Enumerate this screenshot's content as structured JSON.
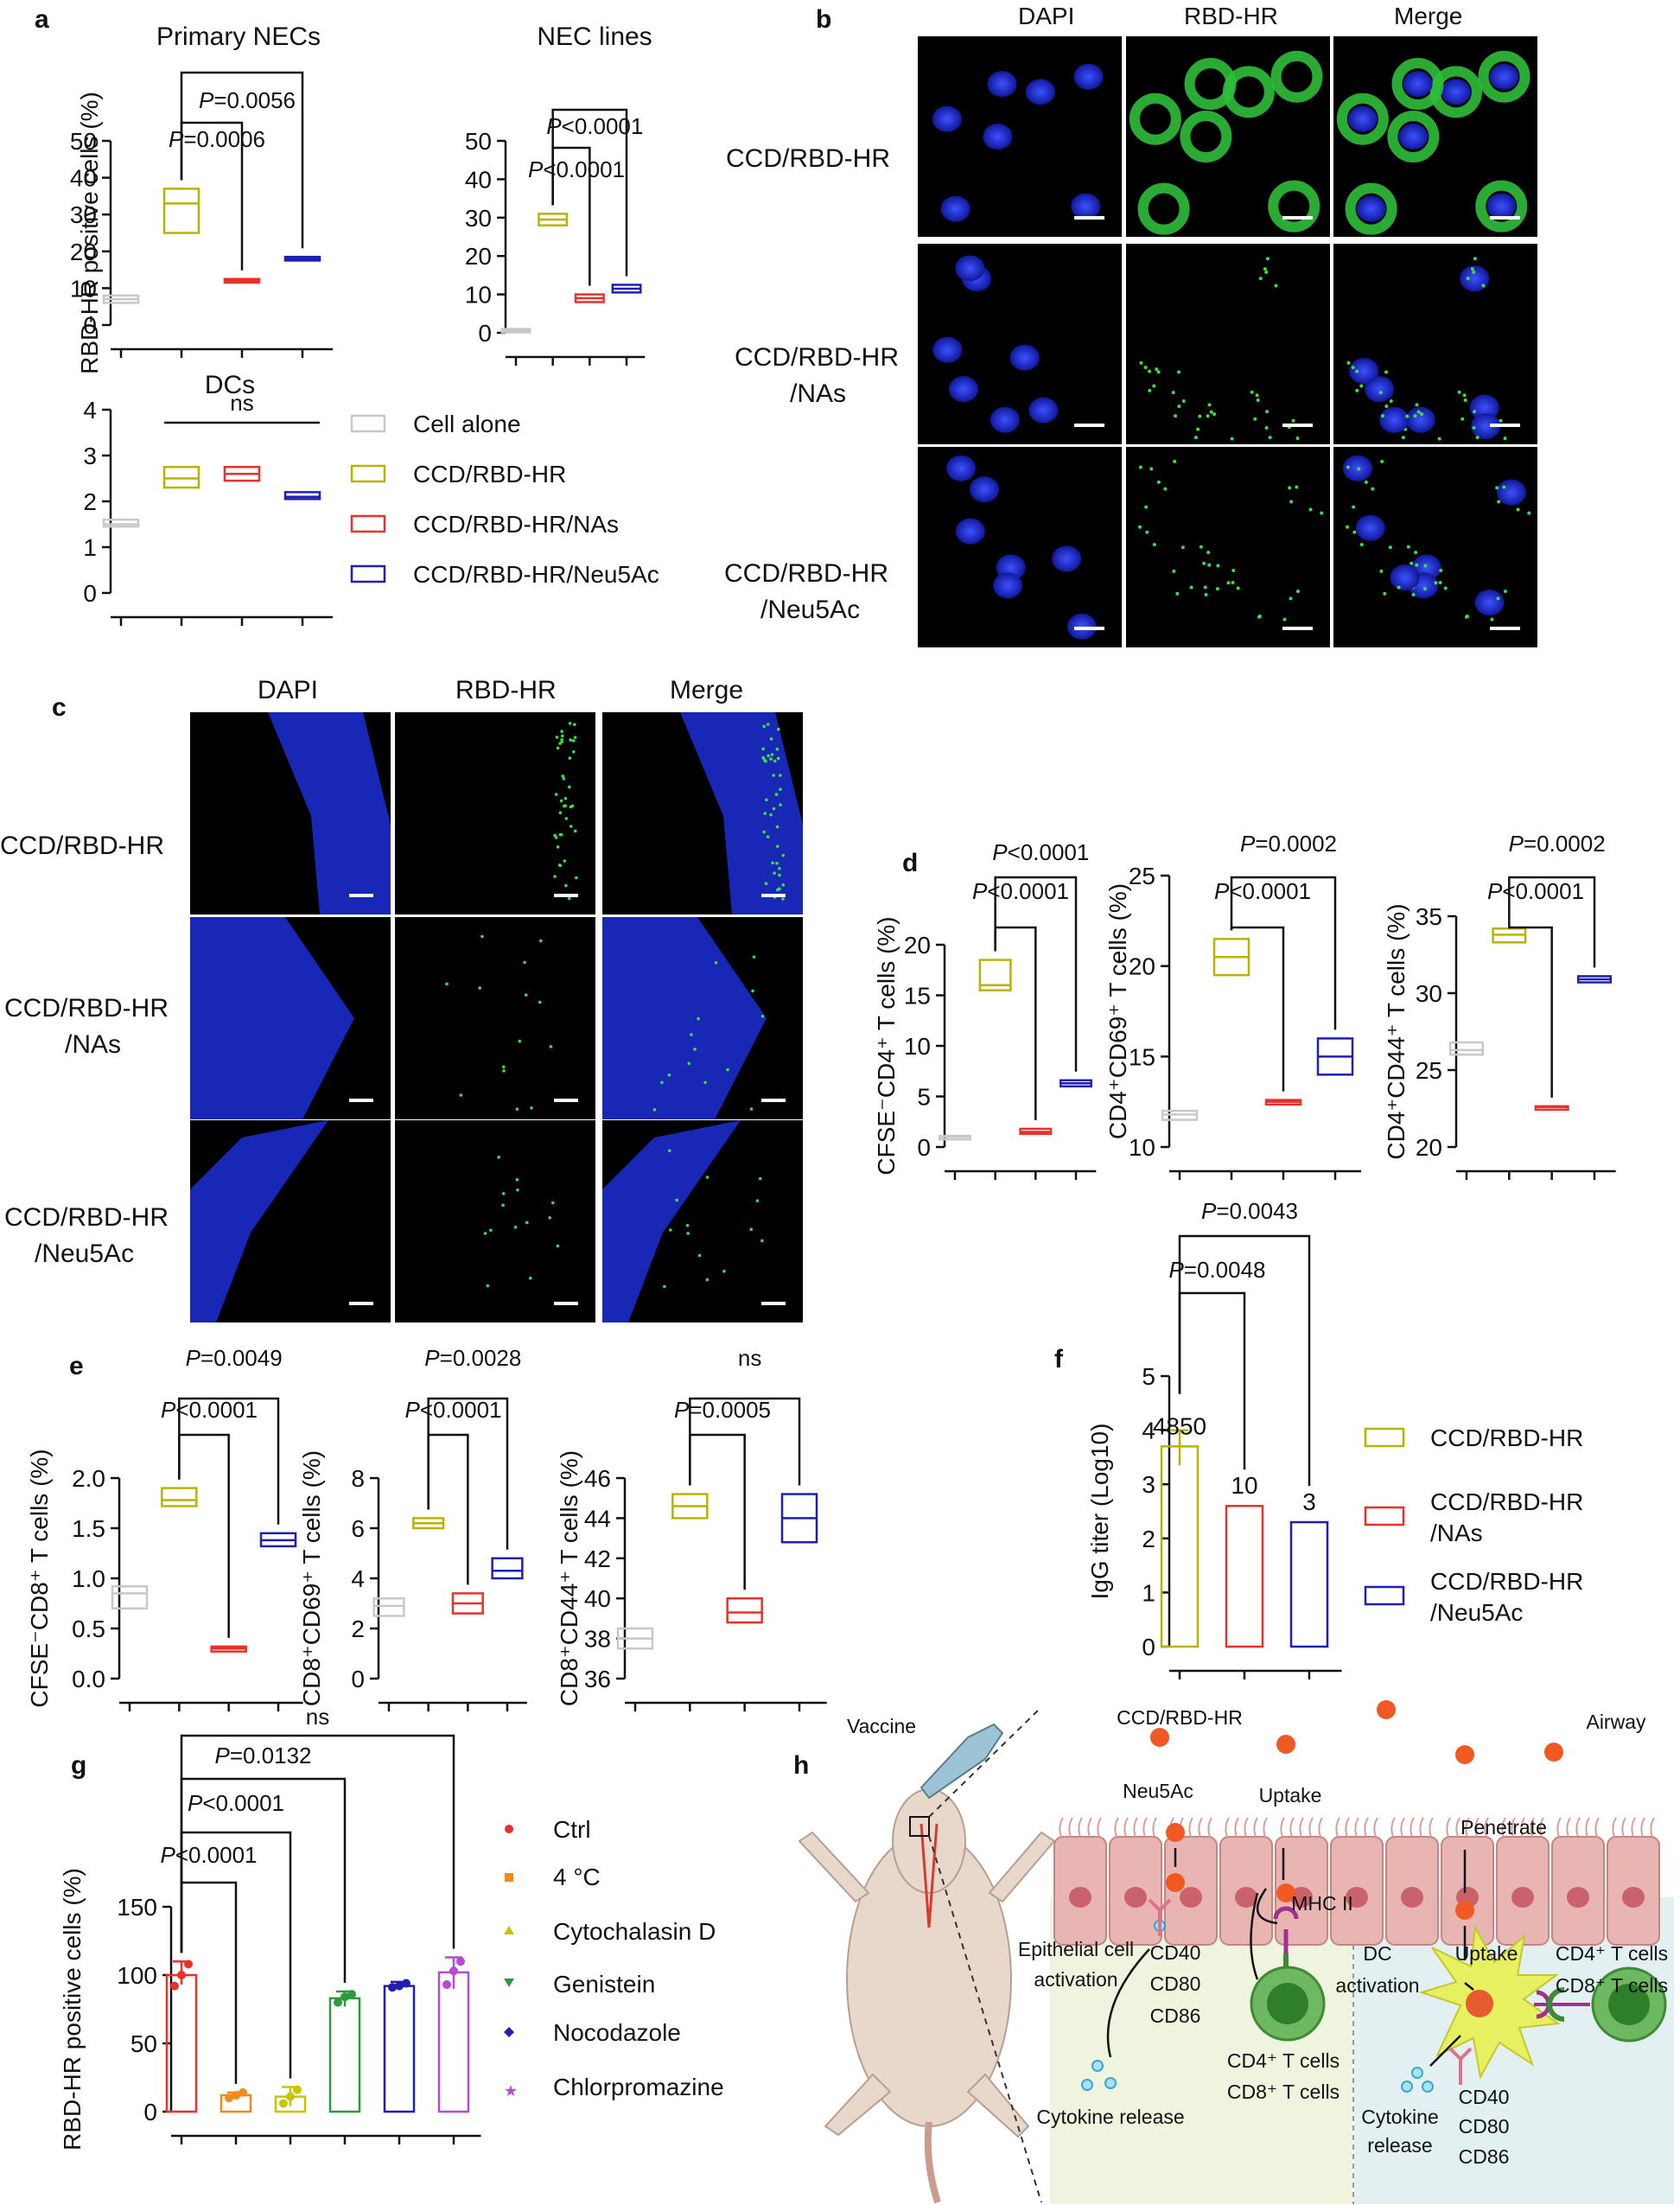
{
  "panel_labels": {
    "a": "a",
    "b": "b",
    "c": "c",
    "d": "d",
    "e": "e",
    "f": "f",
    "g": "g",
    "h": "h"
  },
  "colors": {
    "cell_alone": "#c8c8c8",
    "ccd_rbd_hr": "#b9b300",
    "nas": "#e8312a",
    "neu5ac": "#1f1fb4",
    "ctrl": "#e8312a",
    "c4": "#f08a1c",
    "cytoD": "#c9c400",
    "genistein": "#2e9a3b",
    "nocodazole": "#1f1fb4",
    "chlorpromazine": "#b44ad8"
  },
  "legend_a": [
    "Cell alone",
    "CCD/RBD-HR",
    "CCD/RBD-HR/NAs",
    "CCD/RBD-HR/Neu5Ac"
  ],
  "legend_f": [
    "CCD/RBD-HR",
    "CCD/RBD-HR",
    "/NAs",
    "CCD/RBD-HR",
    "/Neu5Ac"
  ],
  "legend_g": [
    "Ctrl",
    "4 °C",
    "Cytochalasin D",
    "Genistein",
    "Nocodazole",
    "Chlorpromazine"
  ],
  "panel_b": {
    "cols": [
      "DAPI",
      "RBD-HR",
      "Merge"
    ],
    "rows": [
      [
        "CCD/RBD-HR"
      ],
      [
        "CCD/RBD-HR",
        "/NAs"
      ],
      [
        "CCD/RBD-HR",
        "/Neu5Ac"
      ]
    ]
  },
  "panel_c": {
    "cols": [
      "DAPI",
      "RBD-HR",
      "Merge"
    ],
    "rows": [
      [
        "CCD/RBD-HR"
      ],
      [
        "CCD/RBD-HR",
        "/NAs"
      ],
      [
        "CCD/RBD-HR",
        "/Neu5Ac"
      ]
    ]
  },
  "panel_h": {
    "labels": [
      "Vaccine",
      "CCD/RBD-HR",
      "Airway",
      "Neu5Ac",
      "Uptake",
      "Penetrate",
      "Epithelial cell",
      "activation",
      "CD40",
      "CD80",
      "CD86",
      "MHC II",
      "Uptake",
      "DC",
      "activation",
      "CD4⁺ T cells",
      "CD8⁺ T cells",
      "Cytokine release",
      "CD4⁺ T cells",
      "CD8⁺ T cells",
      "Cytokine",
      "release",
      "CD40",
      "CD80",
      "CD86"
    ]
  },
  "chart_data": [
    {
      "id": "a1",
      "type": "box",
      "title": "Primary NECs",
      "ylabel": "RBD-HR positive cells (%)",
      "ylim": [
        0,
        50
      ],
      "yticks": [
        0,
        10,
        20,
        30,
        40,
        50
      ],
      "boxes": [
        {
          "series": "Cell alone",
          "min": 6,
          "med": 7,
          "max": 8
        },
        {
          "series": "CCD/RBD-HR",
          "min": 25,
          "med": 33,
          "max": 37
        },
        {
          "series": "CCD/RBD-HR/NAs",
          "min": 11.5,
          "med": 12,
          "max": 12.5
        },
        {
          "series": "CCD/RBD-HR/Neu5Ac",
          "min": 17.5,
          "med": 18,
          "max": 18.5
        }
      ],
      "annotations": [
        {
          "from": 1,
          "to": 2,
          "text": "P=0.0006"
        },
        {
          "from": 1,
          "to": 3,
          "text": "P=0.0056"
        }
      ]
    },
    {
      "id": "a2",
      "type": "box",
      "title": "NEC lines",
      "ylim": [
        0,
        50
      ],
      "yticks": [
        0,
        10,
        20,
        30,
        40,
        50
      ],
      "boxes": [
        {
          "series": "Cell alone",
          "min": 0.3,
          "med": 0.6,
          "max": 1
        },
        {
          "series": "CCD/RBD-HR",
          "min": 28,
          "med": 29.5,
          "max": 31
        },
        {
          "series": "CCD/RBD-HR/NAs",
          "min": 8,
          "med": 9,
          "max": 10
        },
        {
          "series": "CCD/RBD-HR/Neu5Ac",
          "min": 10.5,
          "med": 11.5,
          "max": 12.5
        }
      ],
      "annotations": [
        {
          "from": 1,
          "to": 2,
          "text": "P<0.0001"
        },
        {
          "from": 1,
          "to": 3,
          "text": "P<0.0001"
        }
      ]
    },
    {
      "id": "a3",
      "type": "box",
      "title": "DCs",
      "ylim": [
        0,
        4
      ],
      "yticks": [
        0,
        1,
        2,
        3,
        4
      ],
      "boxes": [
        {
          "series": "Cell alone",
          "min": 1.45,
          "med": 1.5,
          "max": 1.6
        },
        {
          "series": "CCD/RBD-HR",
          "min": 2.3,
          "med": 2.5,
          "max": 2.75
        },
        {
          "series": "CCD/RBD-HR/NAs",
          "min": 2.45,
          "med": 2.6,
          "max": 2.75
        },
        {
          "series": "CCD/RBD-HR/Neu5Ac",
          "min": 2.05,
          "med": 2.1,
          "max": 2.2
        }
      ],
      "annotations": [
        {
          "line": [
            1,
            3
          ],
          "text": "ns"
        }
      ]
    },
    {
      "id": "d1",
      "type": "box",
      "ylabel": "CFSE⁻CD4⁺ T cells (%)",
      "ylim": [
        0,
        20
      ],
      "yticks": [
        0,
        5,
        10,
        15,
        20
      ],
      "boxes": [
        {
          "series": "Cell alone",
          "min": 0.9,
          "med": 1,
          "max": 1.1
        },
        {
          "series": "CCD/RBD-HR",
          "min": 15.5,
          "med": 16,
          "max": 18.5
        },
        {
          "series": "CCD/RBD-HR/NAs",
          "min": 1.3,
          "med": 1.5,
          "max": 1.8
        },
        {
          "series": "CCD/RBD-HR/Neu5Ac",
          "min": 6,
          "med": 6.3,
          "max": 6.6
        }
      ],
      "annotations": [
        {
          "from": 1,
          "to": 2,
          "text": "P<0.0001"
        },
        {
          "from": 1,
          "to": 3,
          "text": "P<0.0001"
        }
      ]
    },
    {
      "id": "d2",
      "type": "box",
      "ylabel": "CD4⁺CD69⁺ T cells (%)",
      "ylim": [
        10,
        25
      ],
      "yticks": [
        10,
        15,
        20,
        25
      ],
      "boxes": [
        {
          "series": "Cell alone",
          "min": 11.5,
          "med": 11.8,
          "max": 12
        },
        {
          "series": "CCD/RBD-HR",
          "min": 19.5,
          "med": 20.5,
          "max": 21.5
        },
        {
          "series": "CCD/RBD-HR/NAs",
          "min": 12.35,
          "med": 12.5,
          "max": 12.6
        },
        {
          "series": "CCD/RBD-HR/Neu5Ac",
          "min": 14,
          "med": 15,
          "max": 16
        }
      ],
      "annotations": [
        {
          "from": 1,
          "to": 2,
          "text": "P<0.0001"
        },
        {
          "from": 1,
          "to": 3,
          "text": "P=0.0002"
        }
      ]
    },
    {
      "id": "d3",
      "type": "box",
      "ylabel": "CD4⁺CD44⁺ T cells (%)",
      "ylim": [
        20,
        35
      ],
      "yticks": [
        20,
        25,
        30,
        35
      ],
      "boxes": [
        {
          "series": "Cell alone",
          "min": 26,
          "med": 26.3,
          "max": 26.8
        },
        {
          "series": "CCD/RBD-HR",
          "min": 33.3,
          "med": 33.8,
          "max": 34.2
        },
        {
          "series": "CCD/RBD-HR/NAs",
          "min": 22.55,
          "med": 22.6,
          "max": 22.65
        },
        {
          "series": "CCD/RBD-HR/Neu5Ac",
          "min": 30.7,
          "med": 30.9,
          "max": 31.1
        }
      ],
      "annotations": [
        {
          "from": 1,
          "to": 2,
          "text": "P<0.0001"
        },
        {
          "from": 1,
          "to": 3,
          "text": "P=0.0002"
        }
      ]
    },
    {
      "id": "e1",
      "type": "box",
      "ylabel": "CFSE⁻CD8⁺ T cells (%)",
      "ylim": [
        0,
        2
      ],
      "yticks": [
        "0.0",
        "0.5",
        "1.0",
        "1.5",
        "2.0"
      ],
      "boxes": [
        {
          "series": "Cell alone",
          "min": 0.7,
          "med": 0.85,
          "max": 0.92
        },
        {
          "series": "CCD/RBD-HR",
          "min": 1.72,
          "med": 1.78,
          "max": 1.9
        },
        {
          "series": "CCD/RBD-HR/NAs",
          "min": 0.27,
          "med": 0.3,
          "max": 0.32
        },
        {
          "series": "CCD/RBD-HR/Neu5Ac",
          "min": 1.32,
          "med": 1.38,
          "max": 1.45
        }
      ],
      "annotations": [
        {
          "from": 1,
          "to": 2,
          "text": "P<0.0001"
        },
        {
          "from": 1,
          "to": 3,
          "text": "P=0.0049"
        }
      ]
    },
    {
      "id": "e2",
      "type": "box",
      "ylabel": "CD8⁺CD69⁺ T cells (%)",
      "ylim": [
        0,
        8
      ],
      "yticks": [
        0,
        2,
        4,
        6,
        8
      ],
      "boxes": [
        {
          "series": "Cell alone",
          "min": 2.5,
          "med": 2.9,
          "max": 3.2
        },
        {
          "series": "CCD/RBD-HR",
          "min": 6,
          "med": 6.2,
          "max": 6.4
        },
        {
          "series": "CCD/RBD-HR/NAs",
          "min": 2.6,
          "med": 3,
          "max": 3.4
        },
        {
          "series": "CCD/RBD-HR/Neu5Ac",
          "min": 4,
          "med": 4.3,
          "max": 4.8
        }
      ],
      "annotations": [
        {
          "from": 1,
          "to": 2,
          "text": "P<0.0001"
        },
        {
          "from": 1,
          "to": 3,
          "text": "P=0.0028"
        }
      ]
    },
    {
      "id": "e3",
      "type": "box",
      "ylabel": "CD8⁺CD44⁺ T cells (%)",
      "ylim": [
        36,
        46
      ],
      "yticks": [
        36,
        38,
        40,
        42,
        44,
        46
      ],
      "boxes": [
        {
          "series": "Cell alone",
          "min": 37.5,
          "med": 38,
          "max": 38.5
        },
        {
          "series": "CCD/RBD-HR",
          "min": 44,
          "med": 44.6,
          "max": 45.2
        },
        {
          "series": "CCD/RBD-HR/NAs",
          "min": 38.8,
          "med": 39.3,
          "max": 40
        },
        {
          "series": "CCD/RBD-HR/Neu5Ac",
          "min": 42.8,
          "med": 44,
          "max": 45.2
        }
      ],
      "annotations": [
        {
          "from": 1,
          "to": 2,
          "text": "P=0.0005"
        },
        {
          "from": 1,
          "to": 3,
          "text": "ns"
        }
      ]
    },
    {
      "id": "f",
      "type": "bar",
      "ylabel": "IgG titer (Log10)",
      "ylim": [
        0,
        5
      ],
      "yticks": [
        0,
        1,
        2,
        3,
        4,
        5
      ],
      "bars": [
        {
          "series": "CCD/RBD-HR",
          "value": 3.7,
          "label": "4850",
          "err": [
            3.35,
            4.0
          ]
        },
        {
          "series": "CCD/RBD-HR/NAs",
          "value": 2.6,
          "label": "10"
        },
        {
          "series": "CCD/RBD-HR/Neu5Ac",
          "value": 2.3,
          "label": "3"
        }
      ],
      "annotations": [
        {
          "from": 0,
          "to": 1,
          "text": "P=0.0048"
        },
        {
          "from": 0,
          "to": 2,
          "text": "P=0.0043"
        }
      ]
    },
    {
      "id": "g",
      "type": "bar",
      "ylabel": "RBD-HR positive cells (%)",
      "ylim": [
        0,
        150
      ],
      "yticks": [
        0,
        50,
        100,
        150
      ],
      "bars": [
        {
          "series": "Ctrl",
          "value": 100,
          "err": [
            93,
            110
          ],
          "points": [
            92,
            100,
            108
          ]
        },
        {
          "series": "4 °C",
          "value": 12,
          "err": [
            10,
            14
          ],
          "points": [
            10,
            12,
            14
          ]
        },
        {
          "series": "Cytochalasin D",
          "value": 11,
          "err": [
            4,
            18
          ],
          "points": [
            6,
            11,
            16
          ]
        },
        {
          "series": "Genistein",
          "value": 83,
          "err": [
            77,
            88
          ],
          "points": [
            80,
            84,
            86
          ]
        },
        {
          "series": "Nocodazole",
          "value": 92,
          "err": [
            90,
            95
          ],
          "points": [
            91,
            92,
            94
          ]
        },
        {
          "series": "Chlorpromazine",
          "value": 102,
          "err": [
            90,
            113
          ],
          "points": [
            93,
            103,
            110
          ]
        }
      ],
      "annotations": [
        {
          "from": 0,
          "to": 1,
          "text": "P<0.0001"
        },
        {
          "from": 0,
          "to": 2,
          "text": "P<0.0001"
        },
        {
          "from": 0,
          "to": 3,
          "text": "P=0.0132"
        },
        {
          "from": 0,
          "to": 5,
          "text": "ns"
        }
      ]
    }
  ]
}
